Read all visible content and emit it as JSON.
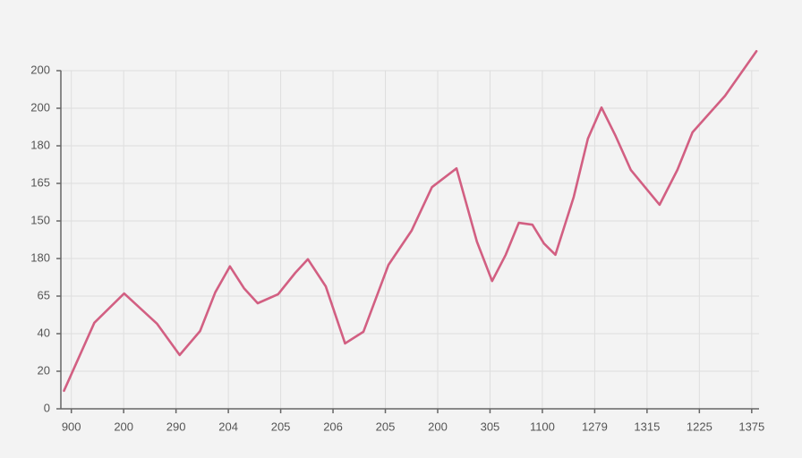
{
  "chart_data": {
    "type": "line",
    "x": [
      -0.14,
      0.44,
      1.01,
      1.64,
      2.07,
      2.46,
      2.75,
      3.03,
      3.3,
      3.56,
      3.95,
      4.28,
      4.52,
      4.86,
      5.23,
      5.58,
      6.06,
      6.5,
      6.89,
      7.36,
      7.75,
      8.04,
      8.3,
      8.55,
      8.81,
      9.03,
      9.25,
      9.6,
      9.87,
      10.13,
      10.4,
      10.69,
      11.24,
      11.58,
      11.87,
      12.49,
      13.09
    ],
    "series": [
      {
        "color": "#d25f82",
        "values": [
          0.48,
          2.29,
          3.07,
          2.26,
          1.43,
          2.07,
          3.1,
          3.79,
          3.21,
          2.81,
          3.05,
          3.62,
          3.98,
          3.26,
          1.74,
          2.05,
          3.83,
          4.74,
          5.9,
          6.4,
          4.45,
          3.4,
          4.1,
          4.95,
          4.9,
          4.4,
          4.1,
          5.64,
          7.19,
          8.02,
          7.26,
          6.36,
          5.43,
          6.36,
          7.36,
          8.33,
          9.52
        ]
      }
    ],
    "xlim": [
      -0.2,
      13.14
    ],
    "xticks": [
      {
        "value": 0,
        "label": "900"
      },
      {
        "value": 1,
        "label": "200"
      },
      {
        "value": 2,
        "label": "290"
      },
      {
        "value": 3,
        "label": "204"
      },
      {
        "value": 4,
        "label": "205"
      },
      {
        "value": 5,
        "label": "206"
      },
      {
        "value": 6,
        "label": "205"
      },
      {
        "value": 7,
        "label": "200"
      },
      {
        "value": 8,
        "label": "305"
      },
      {
        "value": 9,
        "label": "1100"
      },
      {
        "value": 10,
        "label": "1279"
      },
      {
        "value": 11,
        "label": "1315"
      },
      {
        "value": 12,
        "label": "1225"
      },
      {
        "value": 13,
        "label": "1375"
      }
    ],
    "ylim": [
      0,
      9.6
    ],
    "yticks": [
      0,
      {
        "value": 1,
        "label": "20"
      },
      {
        "value": 2,
        "label": "40"
      },
      {
        "value": 3,
        "label": "65"
      },
      {
        "value": 4,
        "label": "180"
      },
      {
        "value": 5,
        "label": "150"
      },
      {
        "value": 6,
        "label": "165"
      },
      {
        "value": 7,
        "label": "180"
      },
      {
        "value": 8,
        "label": "200"
      },
      {
        "value": 9,
        "label": "200"
      }
    ],
    "grid": true
  }
}
